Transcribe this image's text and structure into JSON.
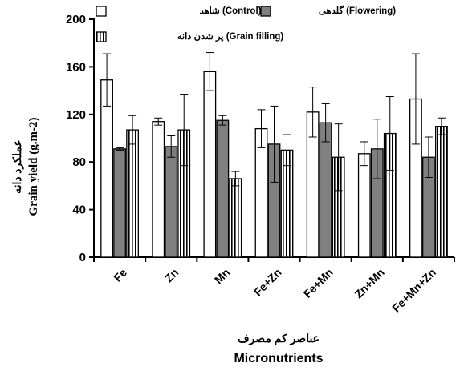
{
  "chart_data": {
    "type": "bar",
    "categories": [
      "Fe",
      "Zn",
      "Mn",
      "Fe+Zn",
      "Fe+Mn",
      "Zn+Mn",
      "Fe+Mn+Zn"
    ],
    "series": [
      {
        "name": "شاهد (Control)",
        "fill": "#ffffff",
        "pattern": "none",
        "values": [
          149,
          114,
          156,
          108,
          122,
          87,
          133
        ],
        "errors": [
          22,
          3,
          16,
          16,
          21,
          10,
          38
        ]
      },
      {
        "name": "گلدهی (Flowering)",
        "fill": "#808080",
        "pattern": "none",
        "values": [
          91,
          93,
          115,
          95,
          113,
          91,
          84
        ],
        "errors": [
          1,
          9,
          4,
          32,
          16,
          25,
          17
        ]
      },
      {
        "name": "پر شدن دانه (Grain filling)",
        "fill": "#ffffff",
        "pattern": "vertical-stripes",
        "values": [
          107,
          107,
          66,
          90,
          84,
          104,
          110
        ],
        "errors": [
          12,
          30,
          6,
          13,
          28,
          31,
          7
        ]
      }
    ],
    "ylim": [
      0,
      200
    ],
    "yticks": [
      0,
      40,
      80,
      120,
      160,
      200
    ],
    "ylabel_persian": "عملکرد دانه",
    "ylabel": "Grain yield  (g.m-2)",
    "xlabel_persian": "عناصر کم مصرف",
    "xlabel": "Micronutrients",
    "grid": false,
    "legend_position": "top"
  }
}
